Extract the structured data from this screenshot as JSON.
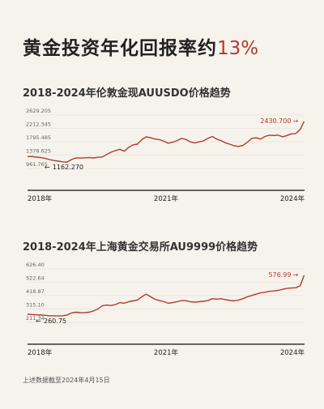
{
  "header": {
    "title_text": "黄金投资年化回报率约",
    "title_accent": "13%"
  },
  "chart_data": [
    {
      "type": "line",
      "title": "2018-2024年伦敦金现AUUSDO价格趋势",
      "yticks": [
        "2629.205",
        "2212.345",
        "1795.485",
        "1378.625",
        "961.765"
      ],
      "ylim": [
        961.765,
        2629.205
      ],
      "xticks": [
        "2018年",
        "2021年",
        "2024年"
      ],
      "xlim": [
        2018,
        2024.3
      ],
      "min_label": "1162.270",
      "max_label": "2430.700",
      "x": [
        2018.0,
        2018.1,
        2018.2,
        2018.3,
        2018.4,
        2018.5,
        2018.6,
        2018.7,
        2018.8,
        2018.9,
        2019.0,
        2019.1,
        2019.2,
        2019.3,
        2019.4,
        2019.5,
        2019.6,
        2019.7,
        2019.8,
        2019.9,
        2020.0,
        2020.1,
        2020.2,
        2020.3,
        2020.4,
        2020.5,
        2020.6,
        2020.7,
        2020.8,
        2020.9,
        2021.0,
        2021.1,
        2021.2,
        2021.3,
        2021.4,
        2021.5,
        2021.6,
        2021.7,
        2021.8,
        2021.9,
        2022.0,
        2022.1,
        2022.2,
        2022.3,
        2022.4,
        2022.5,
        2022.6,
        2022.7,
        2022.8,
        2022.9,
        2023.0,
        2023.1,
        2023.2,
        2023.3,
        2023.4,
        2023.5,
        2023.6,
        2023.7,
        2023.8,
        2023.9,
        2024.0,
        2024.1,
        2024.2,
        2024.29
      ],
      "y": [
        1330,
        1335,
        1315,
        1300,
        1280,
        1240,
        1210,
        1190,
        1170,
        1162,
        1240,
        1290,
        1285,
        1295,
        1300,
        1290,
        1310,
        1320,
        1400,
        1470,
        1520,
        1560,
        1500,
        1620,
        1700,
        1720,
        1860,
        1950,
        1920,
        1880,
        1860,
        1810,
        1750,
        1780,
        1830,
        1900,
        1870,
        1790,
        1760,
        1790,
        1820,
        1900,
        1960,
        1880,
        1830,
        1760,
        1720,
        1670,
        1650,
        1680,
        1780,
        1900,
        1920,
        1880,
        1960,
        2000,
        1990,
        2000,
        1950,
        1990,
        2040,
        2050,
        2180,
        2430.7
      ]
    },
    {
      "type": "line",
      "title": "2018-2024年上海黄金交易所AU9999价格趋势",
      "yticks": [
        "626.40",
        "522.64",
        "418.87",
        "315.10",
        "211.34"
      ],
      "ylim": [
        211.34,
        626.4
      ],
      "xticks": [
        "2018年",
        "2021年",
        "2024年"
      ],
      "xlim": [
        2018,
        2024.3
      ],
      "min_label": "260.75",
      "max_label": "576.99",
      "x": [
        2018.0,
        2018.1,
        2018.2,
        2018.3,
        2018.4,
        2018.5,
        2018.6,
        2018.7,
        2018.8,
        2018.9,
        2019.0,
        2019.1,
        2019.2,
        2019.3,
        2019.4,
        2019.5,
        2019.6,
        2019.7,
        2019.8,
        2019.9,
        2020.0,
        2020.1,
        2020.2,
        2020.3,
        2020.4,
        2020.5,
        2020.6,
        2020.7,
        2020.8,
        2020.9,
        2021.0,
        2021.1,
        2021.2,
        2021.3,
        2021.4,
        2021.5,
        2021.6,
        2021.7,
        2021.8,
        2021.9,
        2022.0,
        2022.1,
        2022.2,
        2022.3,
        2022.4,
        2022.5,
        2022.6,
        2022.7,
        2022.8,
        2022.9,
        2023.0,
        2023.1,
        2023.2,
        2023.3,
        2023.4,
        2023.5,
        2023.6,
        2023.7,
        2023.8,
        2023.9,
        2024.0,
        2024.1,
        2024.2,
        2024.29
      ],
      "y": [
        274,
        272,
        270,
        268,
        266,
        262,
        262,
        261,
        263,
        268,
        284,
        290,
        287,
        286,
        290,
        300,
        315,
        340,
        345,
        342,
        350,
        365,
        360,
        372,
        378,
        385,
        410,
        430,
        410,
        390,
        380,
        372,
        360,
        365,
        372,
        380,
        380,
        372,
        368,
        372,
        375,
        380,
        395,
        392,
        395,
        388,
        382,
        378,
        385,
        395,
        410,
        420,
        430,
        440,
        445,
        452,
        455,
        460,
        468,
        475,
        478,
        480,
        495,
        576.99
      ]
    }
  ],
  "footnote": "上述数据截至2024年4月15日",
  "colors": {
    "line": "#b23a2f",
    "axis": "#111111",
    "grid": "#e2dcd4",
    "tick": "#666666"
  }
}
